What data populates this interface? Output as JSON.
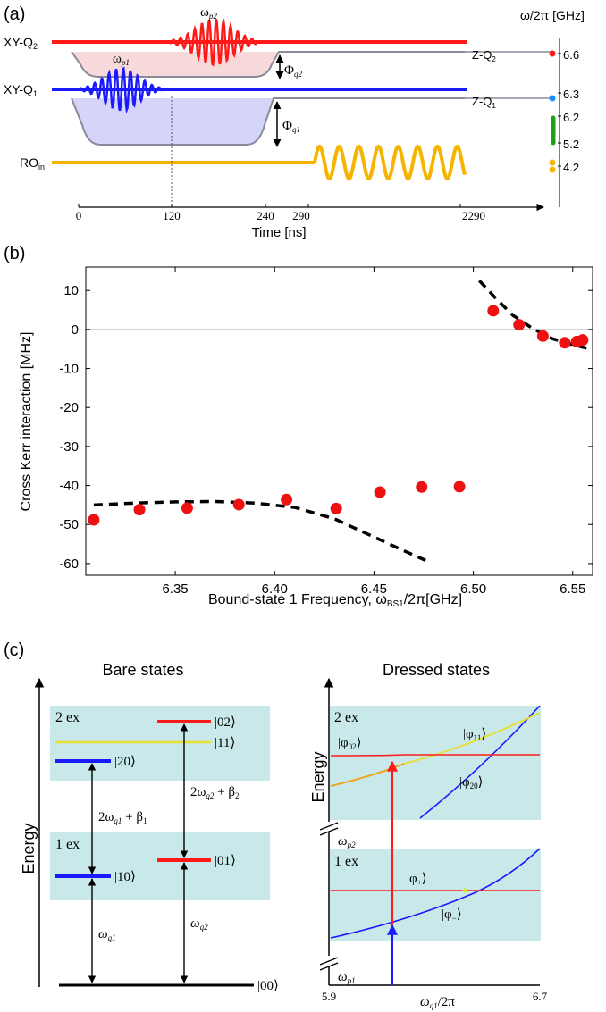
{
  "panel_a": {
    "label": "(a)",
    "units_label": "ω/2π [GHz]",
    "lines": {
      "xy_q2": "XY-Q",
      "xy_q2_sub": "2",
      "xy_q1": "XY-Q",
      "xy_q1_sub": "1",
      "ro": "RO",
      "ro_sub": "in",
      "z_q2": "Z-Q",
      "z_q2_sub": "2",
      "z_q1": "Z-Q",
      "z_q1_sub": "1"
    },
    "pulses": {
      "wp1": "ω",
      "wp1_sub": "p1",
      "wp2": "ω",
      "wp2_sub": "p2"
    },
    "flux": {
      "q2": "Φ",
      "q2_sub": "q2",
      "q1": "Φ",
      "q1_sub": "q1"
    },
    "freq_scale": [
      "6.6",
      "6.3",
      "6.2",
      "5.2",
      "4.2"
    ],
    "time_ticks": [
      "0",
      "120",
      "240",
      "290",
      "2290"
    ],
    "time_label": "Time [ns]",
    "colors": {
      "q2": "#ff1a1a",
      "q1": "#1a1aff",
      "ro": "#f5b400",
      "green": "#1aa31a",
      "flux_line": "#7a7a9a"
    }
  },
  "panel_b": {
    "label": "(b)",
    "ylabel": "Cross Kerr interaction [MHz]",
    "xlabel_main": "Bound-state 1 Frequency, ω",
    "xlabel_sub": "BS1",
    "xlabel_tail": "/2π[GHz]"
  },
  "chart_data": {
    "type": "scatter",
    "xlim": [
      6.305,
      6.56
    ],
    "ylim": [
      -63,
      16
    ],
    "xticks": [
      "6.35",
      "6.40",
      "6.45",
      "6.50",
      "6.55"
    ],
    "yticks": [
      "10",
      "0",
      "-10",
      "-20",
      "-30",
      "-40",
      "-50",
      "-60"
    ],
    "xtick_values": [
      6.35,
      6.4,
      6.45,
      6.5,
      6.55
    ],
    "ytick_values": [
      10,
      0,
      -10,
      -20,
      -30,
      -40,
      -50,
      -60
    ],
    "series": [
      {
        "marker": "circle",
        "color": "#ee1111",
        "x": [
          6.309,
          6.332,
          6.356,
          6.382,
          6.406,
          6.431,
          6.453,
          6.474,
          6.493,
          6.51,
          6.523,
          6.535,
          6.546,
          6.552,
          6.555
        ],
        "y": [
          -48.8,
          -46.2,
          -45.8,
          -44.9,
          -43.6,
          -45.9,
          -41.7,
          -40.4,
          -40.3,
          4.8,
          1.2,
          -1.7,
          -3.4,
          -3.1,
          -2.7
        ]
      },
      {
        "style": "dashed",
        "color": "#000000",
        "x": [
          6.309,
          6.33,
          6.35,
          6.37,
          6.39,
          6.41,
          6.43,
          6.45,
          6.465,
          6.476
        ],
        "y": [
          -45.0,
          -44.5,
          -44.2,
          -44.1,
          -44.5,
          -45.6,
          -48.5,
          -53.2,
          -56.7,
          -59.2
        ]
      },
      {
        "style": "dashed",
        "color": "#000000",
        "x": [
          6.503,
          6.512,
          6.52,
          6.53,
          6.54,
          6.55,
          6.557
        ],
        "y": [
          12.5,
          7.6,
          3.6,
          0.2,
          -2.4,
          -3.9,
          -4.8
        ]
      }
    ]
  },
  "panel_c": {
    "label": "(c)",
    "bare_title": "Bare states",
    "dressed_title": "Dressed states",
    "energy_label": "Energy",
    "bare": {
      "two_ex": "2 ex",
      "one_ex": "1 ex",
      "ket_02": "|02⟩",
      "ket_11": "|11⟩",
      "ket_20": "|20⟩",
      "ket_10": "|10⟩",
      "ket_01": "|01⟩",
      "ket_00": "|00⟩",
      "t1_a": "2ω",
      "t1_b": "q1",
      "t1_c": " + β",
      "t1_d": "1",
      "t2_a": "2ω",
      "t2_b": "q2",
      "t2_c": " + β",
      "t2_d": "2",
      "wq1_a": "ω",
      "wq1_b": "q1",
      "wq2_a": "ω",
      "wq2_b": "q2"
    },
    "dressed": {
      "two_ex": "2 ex",
      "one_ex": "1 ex",
      "phi11_a": "|φ",
      "phi11_b": "11",
      "phi02_a": "|φ",
      "phi02_b": "02",
      "phi20_a": "|φ",
      "phi20_b": "20",
      "phip_a": "|φ",
      "phip_b": "+",
      "phim_a": "|φ",
      "phim_b": "−",
      "ket_close": "⟩",
      "wp2_a": "ω",
      "wp2_b": "p2",
      "wp1_a": "ω",
      "wp1_b": "p1",
      "x_min": "5.9",
      "x_max": "6.7",
      "x_label_a": "ω",
      "x_label_b": "q1",
      "x_label_c": "/2π"
    },
    "colors": {
      "band": "#c8e8ea",
      "red": "#ff1a1a",
      "blue": "#1a1aff",
      "yellow": "#e8e030",
      "orange": "#f0a020"
    }
  }
}
